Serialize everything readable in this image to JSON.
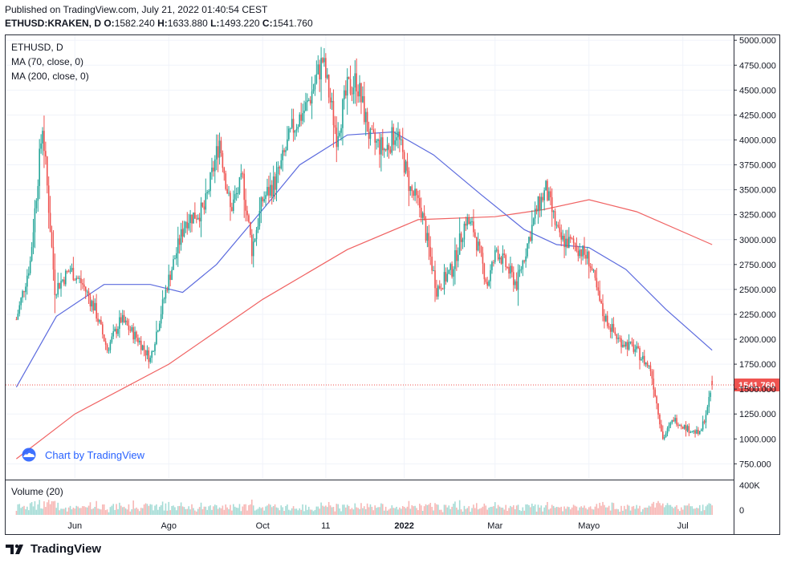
{
  "header": {
    "published": "Published on TradingView.com, July 21, 2022 01:40:54 CEST",
    "symbol": "ETHUSD:KRAKEN, D",
    "o_label": "O:",
    "o": "1582.240",
    "h_label": "H:",
    "h": "1633.880",
    "l_label": "L:",
    "l": "1493.220",
    "c_label": "C:",
    "c": "1541.760"
  },
  "legend": {
    "symbol": "ETHUSD, D",
    "ma70": "MA (70, close, 0)",
    "ma200": "MA (200, close, 0)",
    "volume": "Volume (20)"
  },
  "watermark": "Chart by TradingView",
  "footer_brand": "TradingView",
  "colors": {
    "up": "#26a69a",
    "down": "#ef5350",
    "ma70": "#5c6bde",
    "ma200": "#f06262",
    "last_price_bg": "#ef5350",
    "grid": "#f0f3fa"
  },
  "chart_data": {
    "type": "candlestick",
    "price_axis": {
      "ylim": [
        600,
        5050
      ],
      "ticks": [
        "750.000",
        "1000.000",
        "1250.000",
        "1500.000",
        "1750.000",
        "2000.000",
        "2250.000",
        "2500.000",
        "2750.000",
        "3000.000",
        "3250.000",
        "3500.000",
        "3750.000",
        "4000.000",
        "4250.000",
        "4500.000",
        "4750.000",
        "5000.000"
      ]
    },
    "volume_axis": {
      "ticks": [
        "400K",
        "0"
      ]
    },
    "x_axis": {
      "labels": [
        "Jun",
        "Ago",
        "Oct",
        "11",
        "2022",
        "Mar",
        "Mayo",
        "Jul"
      ]
    },
    "last_price": "1541.760",
    "ohlc_last": {
      "open": 1582.24,
      "high": 1633.88,
      "low": 1493.22,
      "close": 1541.76
    },
    "anchors": [
      {
        "x": "2021-04-24",
        "price": 2200
      },
      {
        "x": "2021-05-03",
        "price": 2780
      },
      {
        "x": "2021-05-11",
        "price": 4150
      },
      {
        "x": "2021-05-19",
        "price": 2500
      },
      {
        "x": "2021-05-29",
        "price": 2700
      },
      {
        "x": "2021-06-06",
        "price": 2550
      },
      {
        "x": "2021-06-14",
        "price": 2300
      },
      {
        "x": "2021-06-22",
        "price": 1900
      },
      {
        "x": "2021-07-01",
        "price": 2200
      },
      {
        "x": "2021-07-12",
        "price": 2000
      },
      {
        "x": "2021-07-20",
        "price": 1800
      },
      {
        "x": "2021-07-31",
        "price": 2550
      },
      {
        "x": "2021-08-12",
        "price": 3200
      },
      {
        "x": "2021-08-24",
        "price": 3300
      },
      {
        "x": "2021-09-03",
        "price": 4000
      },
      {
        "x": "2021-09-10",
        "price": 3300
      },
      {
        "x": "2021-09-18",
        "price": 3600
      },
      {
        "x": "2021-09-24",
        "price": 2900
      },
      {
        "x": "2021-10-01",
        "price": 3400
      },
      {
        "x": "2021-10-10",
        "price": 3600
      },
      {
        "x": "2021-10-20",
        "price": 4100
      },
      {
        "x": "2021-10-30",
        "price": 4350
      },
      {
        "x": "2021-11-09",
        "price": 4800
      },
      {
        "x": "2021-11-18",
        "price": 4050
      },
      {
        "x": "2021-11-25",
        "price": 4500
      },
      {
        "x": "2021-12-01",
        "price": 4600
      },
      {
        "x": "2021-12-10",
        "price": 4000
      },
      {
        "x": "2021-12-20",
        "price": 3900
      },
      {
        "x": "2021-12-27",
        "price": 4100
      },
      {
        "x": "2022-01-05",
        "price": 3500
      },
      {
        "x": "2022-01-12",
        "price": 3300
      },
      {
        "x": "2022-01-22",
        "price": 2500
      },
      {
        "x": "2022-02-01",
        "price": 2700
      },
      {
        "x": "2022-02-10",
        "price": 3200
      },
      {
        "x": "2022-02-15",
        "price": 3100
      },
      {
        "x": "2022-02-24",
        "price": 2550
      },
      {
        "x": "2022-03-02",
        "price": 2900
      },
      {
        "x": "2022-03-15",
        "price": 2550
      },
      {
        "x": "2022-03-28",
        "price": 3300
      },
      {
        "x": "2022-04-03",
        "price": 3500
      },
      {
        "x": "2022-04-12",
        "price": 3000
      },
      {
        "x": "2022-04-22",
        "price": 2950
      },
      {
        "x": "2022-05-01",
        "price": 2800
      },
      {
        "x": "2022-05-10",
        "price": 2250
      },
      {
        "x": "2022-05-20",
        "price": 2000
      },
      {
        "x": "2022-05-31",
        "price": 1900
      },
      {
        "x": "2022-06-10",
        "price": 1700
      },
      {
        "x": "2022-06-13",
        "price": 1450
      },
      {
        "x": "2022-06-18",
        "price": 1000
      },
      {
        "x": "2022-06-25",
        "price": 1200
      },
      {
        "x": "2022-07-04",
        "price": 1100
      },
      {
        "x": "2022-07-12",
        "price": 1050
      },
      {
        "x": "2022-07-17",
        "price": 1300
      },
      {
        "x": "2022-07-20",
        "price": 1542
      }
    ],
    "ma70_anchors": [
      {
        "x": "2021-04-24",
        "price": 1520
      },
      {
        "x": "2021-05-20",
        "price": 2230
      },
      {
        "x": "2021-06-20",
        "price": 2550
      },
      {
        "x": "2021-07-20",
        "price": 2550
      },
      {
        "x": "2021-08-10",
        "price": 2470
      },
      {
        "x": "2021-09-01",
        "price": 2750
      },
      {
        "x": "2021-10-01",
        "price": 3300
      },
      {
        "x": "2021-10-25",
        "price": 3750
      },
      {
        "x": "2021-11-25",
        "price": 4050
      },
      {
        "x": "2021-12-25",
        "price": 4080
      },
      {
        "x": "2022-01-20",
        "price": 3850
      },
      {
        "x": "2022-02-20",
        "price": 3450
      },
      {
        "x": "2022-03-20",
        "price": 3100
      },
      {
        "x": "2022-04-10",
        "price": 2950
      },
      {
        "x": "2022-05-01",
        "price": 2920
      },
      {
        "x": "2022-05-25",
        "price": 2700
      },
      {
        "x": "2022-06-20",
        "price": 2300
      },
      {
        "x": "2022-07-20",
        "price": 1890
      }
    ],
    "ma200_anchors": [
      {
        "x": "2021-04-24",
        "price": 800
      },
      {
        "x": "2021-06-01",
        "price": 1250
      },
      {
        "x": "2021-08-01",
        "price": 1750
      },
      {
        "x": "2021-10-01",
        "price": 2400
      },
      {
        "x": "2021-11-25",
        "price": 2900
      },
      {
        "x": "2022-01-10",
        "price": 3200
      },
      {
        "x": "2022-03-01",
        "price": 3230
      },
      {
        "x": "2022-04-01",
        "price": 3300
      },
      {
        "x": "2022-05-01",
        "price": 3400
      },
      {
        "x": "2022-06-01",
        "price": 3280
      },
      {
        "x": "2022-07-20",
        "price": 2950
      }
    ]
  }
}
